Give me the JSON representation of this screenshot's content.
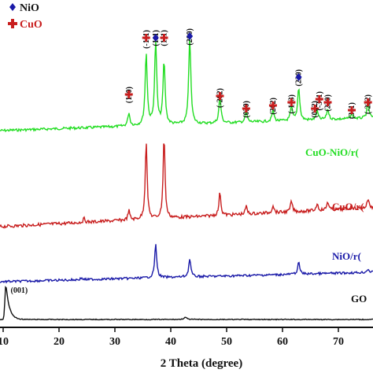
{
  "chart_data": {
    "type": "line",
    "xlabel": "2 Theta (degree)",
    "ylabel": "",
    "xlim": [
      10,
      76
    ],
    "xticks": [
      "10",
      "20",
      "30",
      "40",
      "50",
      "60",
      "70"
    ],
    "legend": {
      "placement": "top-left",
      "entries": [
        {
          "label": "NiO",
          "marker": "diamond",
          "color": "#1a1aa8"
        },
        {
          "label": "CuO",
          "marker": "cross",
          "color": "#c81e1e"
        }
      ]
    },
    "series": [
      {
        "name": "CuO-NiO/r(",
        "color": "#22dd22",
        "peaks": [
          {
            "x": 32.5,
            "h": 0.15
          },
          {
            "x": 35.6,
            "h": 0.82
          },
          {
            "x": 37.3,
            "h": 0.95
          },
          {
            "x": 38.8,
            "h": 0.72
          },
          {
            "x": 43.4,
            "h": 1.0
          },
          {
            "x": 48.8,
            "h": 0.3
          },
          {
            "x": 53.5,
            "h": 0.12
          },
          {
            "x": 58.3,
            "h": 0.13
          },
          {
            "x": 61.6,
            "h": 0.16
          },
          {
            "x": 62.9,
            "h": 0.38
          },
          {
            "x": 66.2,
            "h": 0.1
          },
          {
            "x": 68.1,
            "h": 0.12
          },
          {
            "x": 72.4,
            "h": 0.06
          },
          {
            "x": 75.3,
            "h": 0.18
          }
        ]
      },
      {
        "name": "CuO/r(",
        "color": "#c81e1e",
        "peaks": [
          {
            "x": 24.5,
            "h": 0.05
          },
          {
            "x": 32.5,
            "h": 0.12
          },
          {
            "x": 35.6,
            "h": 1.0
          },
          {
            "x": 38.8,
            "h": 1.05
          },
          {
            "x": 48.8,
            "h": 0.3
          },
          {
            "x": 53.5,
            "h": 0.1
          },
          {
            "x": 58.3,
            "h": 0.1
          },
          {
            "x": 61.6,
            "h": 0.14
          },
          {
            "x": 66.2,
            "h": 0.09
          },
          {
            "x": 68.1,
            "h": 0.11
          },
          {
            "x": 72.4,
            "h": 0.04
          },
          {
            "x": 75.3,
            "h": 0.12
          }
        ]
      },
      {
        "name": "NiO/r(",
        "color": "#1a1aa8",
        "peaks": [
          {
            "x": 24.0,
            "h": 0.05
          },
          {
            "x": 37.3,
            "h": 1.0
          },
          {
            "x": 43.4,
            "h": 0.55
          },
          {
            "x": 62.9,
            "h": 0.35
          },
          {
            "x": 75.3,
            "h": 0.1
          }
        ]
      },
      {
        "name": "GO",
        "color": "#111111",
        "peaks": [
          {
            "x": 10.5,
            "h": 1.0
          },
          {
            "x": 42.6,
            "h": 0.06
          }
        ]
      }
    ],
    "annotations": [
      {
        "text": "(110)",
        "x": 32.5,
        "marker": "cross"
      },
      {
        "text": "(-111)",
        "x": 35.6,
        "marker": "cross"
      },
      {
        "text": "(111)",
        "x": 37.3,
        "marker": "diamond"
      },
      {
        "text": "(111)",
        "x": 38.8,
        "marker": "cross"
      },
      {
        "text": "(200)",
        "x": 43.4,
        "marker": "diamond"
      },
      {
        "text": "(-202)",
        "x": 48.8,
        "marker": "cross"
      },
      {
        "text": "(020)",
        "x": 53.5,
        "marker": "cross"
      },
      {
        "text": "(202)",
        "x": 58.3,
        "marker": "cross"
      },
      {
        "text": "(-113)",
        "x": 61.6,
        "marker": "cross"
      },
      {
        "text": "(220)",
        "x": 62.9,
        "marker": "diamond"
      },
      {
        "text": "(022)",
        "x": 65.8,
        "marker": "cross"
      },
      {
        "text": "(-311)",
        "x": 66.6,
        "marker": "cross"
      },
      {
        "text": "(220)",
        "x": 68.1,
        "marker": "cross"
      },
      {
        "text": "(311)",
        "x": 72.4,
        "marker": "cross"
      },
      {
        "text": "(-222)",
        "x": 75.3,
        "marker": "cross"
      },
      {
        "text": "(001)",
        "x": 10.5,
        "marker": "none"
      }
    ]
  }
}
